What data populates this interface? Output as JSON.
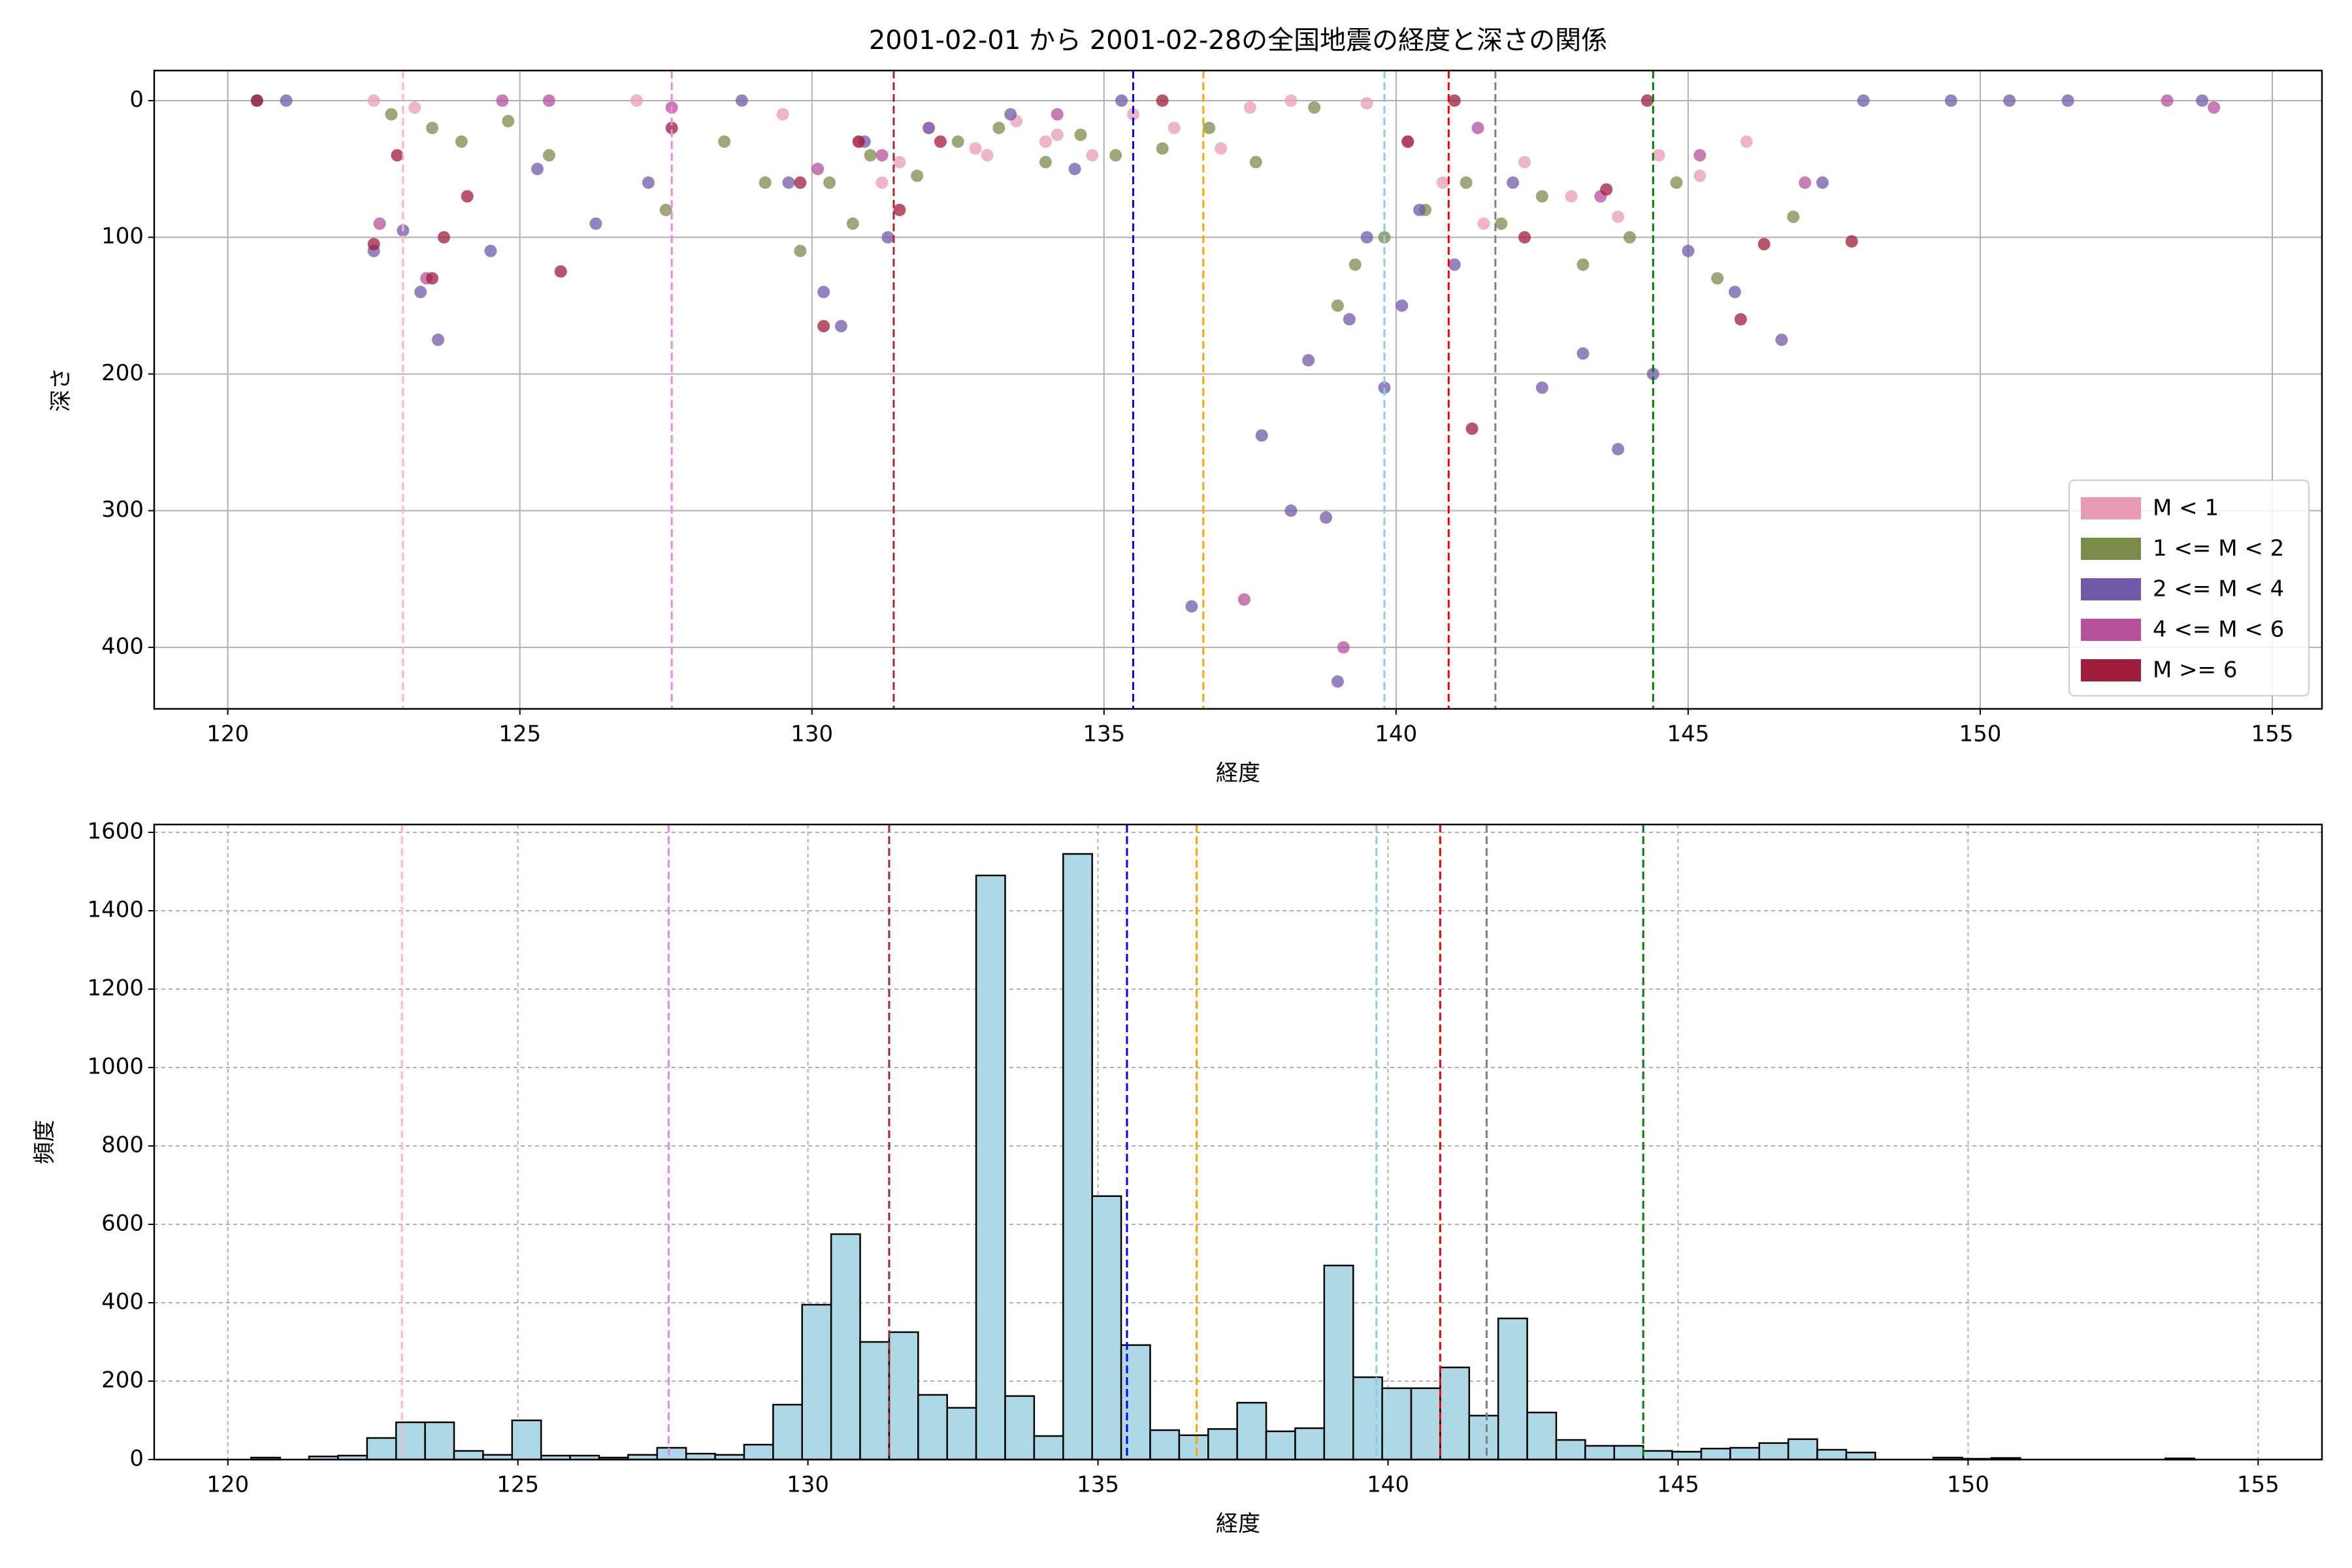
{
  "chart_data": [
    {
      "type": "scatter",
      "title": "2001-02-01 から 2001-02-28の全国地震の経度と深さの関係",
      "xlabel": "経度",
      "ylabel": "深さ",
      "xlim": [
        118.74,
        155.85
      ],
      "ylim": [
        445,
        -22
      ],
      "xticks": [
        120,
        125,
        130,
        135,
        140,
        145,
        150,
        155
      ],
      "yticks": [
        0,
        100,
        200,
        300,
        400
      ],
      "grid": true,
      "grid_style": "solid",
      "legend": "lower-right",
      "vlines": [
        {
          "x": 123.0,
          "color": "#ffb6c1"
        },
        {
          "x": 127.6,
          "color": "#ee82ee"
        },
        {
          "x": 131.4,
          "color": "#a52a2a"
        },
        {
          "x": 135.5,
          "color": "#0000ff"
        },
        {
          "x": 136.7,
          "color": "#ffa500"
        },
        {
          "x": 139.8,
          "color": "#87ceeb"
        },
        {
          "x": 140.9,
          "color": "#ff0000"
        },
        {
          "x": 141.7,
          "color": "#808080"
        },
        {
          "x": 144.4,
          "color": "#008000"
        }
      ],
      "series": [
        {
          "name": "M < 1",
          "color": "#e89bb4",
          "x": [
            122.5,
            123.2,
            127.0,
            129.5,
            130.8,
            131.5,
            132.0,
            132.8,
            133.5,
            134.2,
            134.8,
            135.5,
            136.2,
            137.0,
            137.5,
            138.2,
            139.5,
            140.2,
            140.8,
            141.5,
            142.2,
            143.0,
            143.8,
            144.5,
            145.2,
            146.0,
            131.2,
            133.0,
            134.0
          ],
          "values": [
            0,
            5,
            0,
            10,
            30,
            45,
            20,
            35,
            15,
            25,
            40,
            10,
            20,
            35,
            5,
            0,
            2,
            30,
            60,
            90,
            45,
            70,
            85,
            40,
            55,
            30,
            60,
            40,
            30
          ]
        },
        {
          "name": "1 <= M < 2",
          "color": "#7b8b4a",
          "x": [
            122.8,
            123.5,
            124.0,
            124.8,
            125.5,
            127.5,
            128.5,
            129.2,
            129.8,
            130.3,
            130.7,
            131.0,
            131.8,
            132.5,
            133.2,
            134.0,
            134.6,
            135.2,
            136.0,
            136.8,
            137.6,
            138.6,
            139.0,
            139.3,
            139.8,
            140.5,
            141.2,
            141.8,
            142.5,
            143.2,
            144.0,
            144.8,
            145.5,
            146.8
          ],
          "values": [
            10,
            20,
            30,
            15,
            40,
            80,
            30,
            60,
            110,
            60,
            90,
            40,
            55,
            30,
            20,
            45,
            25,
            40,
            35,
            20,
            45,
            5,
            150,
            120,
            100,
            80,
            60,
            90,
            70,
            120,
            100,
            60,
            130,
            85
          ]
        },
        {
          "name": "2 <= M < 4",
          "color": "#7059a8",
          "x": [
            120.5,
            121.0,
            122.5,
            123.0,
            123.3,
            123.6,
            124.5,
            125.3,
            126.3,
            127.2,
            128.8,
            129.6,
            130.2,
            130.5,
            130.9,
            131.3,
            132.0,
            133.4,
            134.5,
            135.3,
            136.5,
            137.7,
            138.2,
            138.5,
            138.8,
            139.0,
            139.2,
            139.5,
            139.8,
            140.1,
            140.4,
            141.0,
            142.0,
            142.5,
            143.2,
            143.8,
            144.4,
            145.0,
            145.8,
            146.6,
            147.3,
            148.0,
            149.5,
            150.5,
            151.5,
            153.8
          ],
          "values": [
            0,
            0,
            110,
            95,
            140,
            175,
            110,
            50,
            90,
            60,
            0,
            60,
            140,
            165,
            30,
            100,
            20,
            10,
            50,
            0,
            370,
            245,
            300,
            190,
            305,
            425,
            160,
            100,
            210,
            150,
            80,
            120,
            60,
            210,
            185,
            255,
            200,
            110,
            140,
            175,
            60,
            0,
            0,
            0,
            0,
            0
          ]
        },
        {
          "name": "4 <= M < 6",
          "color": "#b5509a",
          "x": [
            122.6,
            123.4,
            124.7,
            125.5,
            127.6,
            130.1,
            131.2,
            134.2,
            137.4,
            139.1,
            141.4,
            143.5,
            145.2,
            147.0,
            153.2,
            154.0
          ],
          "values": [
            90,
            130,
            0,
            0,
            5,
            50,
            40,
            10,
            365,
            400,
            20,
            70,
            40,
            60,
            0,
            5
          ]
        },
        {
          "name": "M >= 6",
          "color": "#a01c3c",
          "x": [
            120.5,
            122.5,
            122.9,
            123.5,
            123.7,
            124.1,
            125.7,
            127.6,
            129.8,
            130.2,
            130.8,
            131.5,
            132.2,
            136.0,
            140.2,
            141.0,
            141.3,
            142.2,
            143.6,
            144.3,
            145.9,
            146.3,
            147.8
          ],
          "values": [
            0,
            105,
            40,
            130,
            100,
            70,
            125,
            20,
            60,
            165,
            30,
            80,
            30,
            0,
            30,
            0,
            240,
            100,
            65,
            0,
            160,
            105,
            103
          ]
        }
      ]
    },
    {
      "type": "histogram",
      "xlabel": "経度",
      "ylabel": "頻度",
      "color": "#add8e6",
      "xlim": [
        118.73,
        156.1
      ],
      "ylim": [
        0,
        1620
      ],
      "xticks": [
        120,
        125,
        130,
        135,
        140,
        145,
        150,
        155
      ],
      "yticks": [
        0,
        200,
        400,
        600,
        800,
        1000,
        1200,
        1400,
        1600
      ],
      "grid": true,
      "grid_style": "dashed",
      "vlines": [
        {
          "x": 123.0,
          "color": "#ffb6c1"
        },
        {
          "x": 127.6,
          "color": "#ee82ee"
        },
        {
          "x": 131.4,
          "color": "#a52a2a"
        },
        {
          "x": 135.5,
          "color": "#0000ff"
        },
        {
          "x": 136.7,
          "color": "#ffa500"
        },
        {
          "x": 139.8,
          "color": "#87ceeb"
        },
        {
          "x": 140.9,
          "color": "#ff0000"
        },
        {
          "x": 141.7,
          "color": "#808080"
        },
        {
          "x": 144.4,
          "color": "#008000"
        }
      ],
      "bins": [
        120.4,
        120.9,
        121.4,
        121.9,
        122.4,
        122.9,
        123.4,
        123.9,
        124.4,
        124.9,
        125.4,
        125.9,
        126.4,
        126.9,
        127.4,
        127.9,
        128.4,
        128.9,
        129.4,
        129.9,
        130.4,
        130.9,
        131.4,
        131.9,
        132.4,
        132.9,
        133.4,
        133.9,
        134.4,
        134.9,
        135.4,
        135.9,
        136.4,
        136.9,
        137.4,
        137.9,
        138.4,
        138.9,
        139.4,
        139.9,
        140.4,
        140.9,
        141.4,
        141.9,
        142.4,
        142.9,
        143.4,
        143.9,
        144.4,
        144.9,
        145.4,
        145.9,
        146.4,
        146.9,
        147.4,
        147.9,
        148.4,
        148.9,
        149.4,
        149.9,
        150.4,
        150.9,
        151.4,
        151.9,
        152.4,
        152.9,
        153.4,
        153.9,
        154.4,
        154.9,
        155.4
      ],
      "values": [
        5,
        0,
        8,
        10,
        55,
        95,
        95,
        22,
        12,
        100,
        10,
        10,
        5,
        12,
        30,
        15,
        12,
        38,
        140,
        395,
        575,
        300,
        325,
        165,
        132,
        1490,
        162,
        60,
        1545,
        672,
        292,
        75,
        62,
        78,
        145,
        72,
        80,
        495,
        210,
        182,
        182,
        235,
        112,
        360,
        120,
        50,
        35,
        35,
        22,
        20,
        28,
        30,
        42,
        52,
        25,
        18,
        0,
        0,
        5,
        2,
        4,
        0,
        0,
        0,
        0,
        0,
        3,
        0,
        0,
        0
      ]
    }
  ]
}
